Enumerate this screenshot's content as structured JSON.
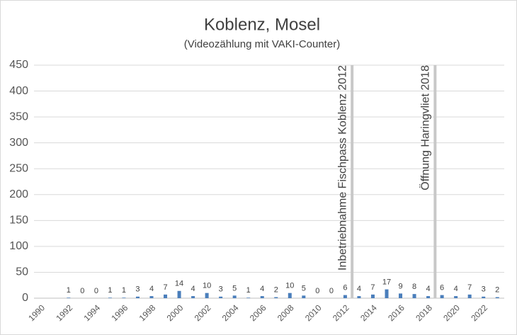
{
  "chart_data": {
    "type": "bar",
    "title": "Koblenz, Mosel",
    "subtitle": "(Videozählung mit VAKI-Counter)",
    "categories": [
      "1990",
      null,
      "1992",
      null,
      "1994",
      null,
      "1996",
      null,
      "1998",
      null,
      "2000",
      null,
      "2002",
      null,
      "2004",
      null,
      "2006",
      null,
      "2008",
      null,
      "2010",
      null,
      "2012",
      null,
      "2014",
      null,
      "2016",
      null,
      "2018",
      null,
      "2020",
      null,
      "2022",
      null
    ],
    "values": [
      null,
      null,
      1,
      0,
      0,
      1,
      1,
      3,
      4,
      7,
      14,
      4,
      10,
      3,
      5,
      1,
      4,
      2,
      10,
      5,
      0,
      0,
      6,
      4,
      7,
      17,
      9,
      8,
      4,
      6,
      4,
      7,
      3,
      2
    ],
    "color": "#4a7ebb",
    "ylim": [
      0,
      450
    ],
    "yticks": [
      0,
      50,
      100,
      150,
      200,
      250,
      300,
      350,
      400,
      450
    ],
    "grid": true,
    "annotations": [
      {
        "text": "Inbetriebnahme Fischpass Koblenz 2012",
        "x": 22.5
      },
      {
        "text": "Öffnung Haringvliet 2018",
        "x": 28.5
      }
    ]
  }
}
